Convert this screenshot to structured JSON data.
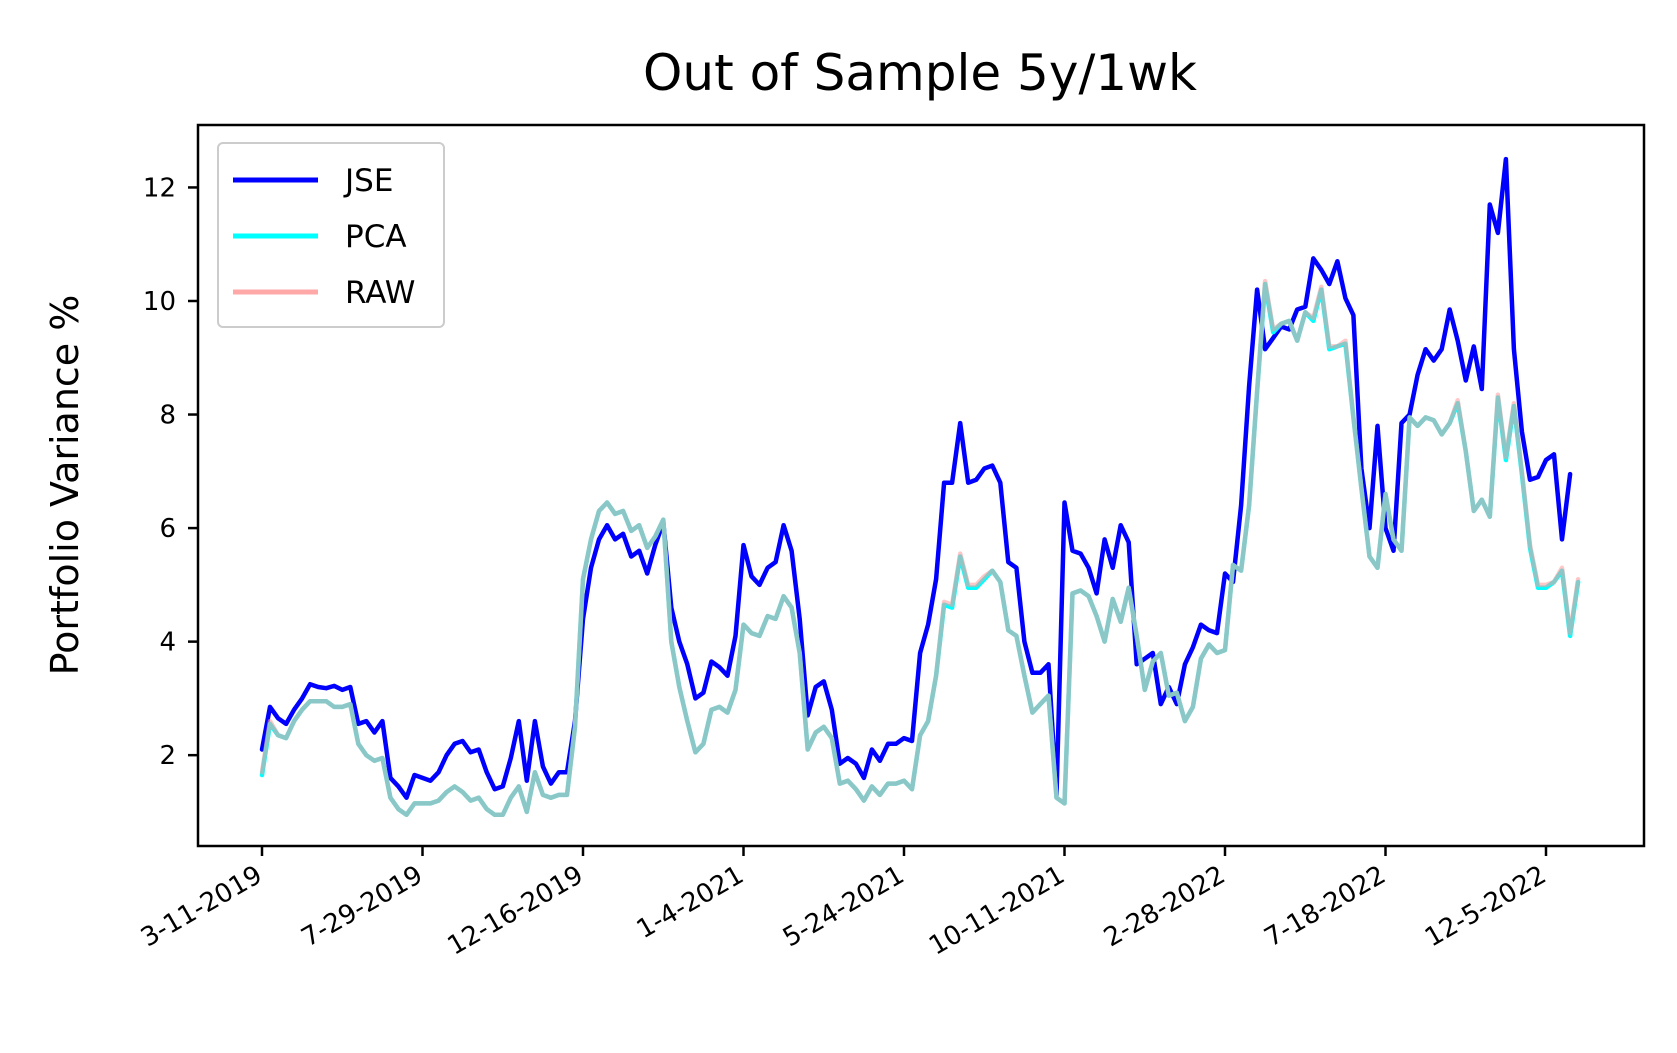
{
  "chart_data": {
    "type": "line",
    "title": "Out of Sample 5y/1wk",
    "xlabel": "",
    "ylabel": "Portfolio Variance %",
    "grid": false,
    "legend_position": "top-left",
    "yticks": [
      2,
      4,
      6,
      8,
      10,
      12
    ],
    "ylim": [
      0.4,
      13.1
    ],
    "xtick_labels": [
      "3-11-2019",
      "7-29-2019",
      "12-16-2019",
      "1-4-2021",
      "5-24-2021",
      "10-11-2021",
      "2-28-2022",
      "7-18-2022",
      "12-5-2022"
    ],
    "series": [
      {
        "name": "JSE",
        "color": "#0000ff",
        "values": [
          2.1,
          2.85,
          2.65,
          2.55,
          2.8,
          3.0,
          3.25,
          3.2,
          3.18,
          3.22,
          3.15,
          3.2,
          2.55,
          2.6,
          2.4,
          2.6,
          1.6,
          1.45,
          1.25,
          1.65,
          1.6,
          1.55,
          1.7,
          2.0,
          2.2,
          2.25,
          2.05,
          2.1,
          1.7,
          1.4,
          1.45,
          1.95,
          2.6,
          1.55,
          2.6,
          1.8,
          1.5,
          1.7,
          1.7,
          2.6,
          4.4,
          5.3,
          5.8,
          6.05,
          5.8,
          5.9,
          5.5,
          5.6,
          5.2,
          5.7,
          6.1,
          4.6,
          4.0,
          3.6,
          3.0,
          3.1,
          3.65,
          3.55,
          3.4,
          4.1,
          5.7,
          5.15,
          5.0,
          5.3,
          5.4,
          6.05,
          5.6,
          4.4,
          2.7,
          3.2,
          3.3,
          2.8,
          1.85,
          1.95,
          1.85,
          1.6,
          2.1,
          1.9,
          2.2,
          2.2,
          2.3,
          2.25,
          3.8,
          4.3,
          5.1,
          6.8,
          6.8,
          7.85,
          6.8,
          6.85,
          7.05,
          7.1,
          6.8,
          5.4,
          5.3,
          4.0,
          3.45,
          3.45,
          3.6,
          1.3,
          6.45,
          5.6,
          5.55,
          5.3,
          4.85,
          5.8,
          5.3,
          6.05,
          5.75,
          3.6,
          3.7,
          3.8,
          2.9,
          3.2,
          2.9,
          3.6,
          3.9,
          4.3,
          4.2,
          4.15,
          5.2,
          5.05,
          6.4,
          8.5,
          10.2,
          9.15,
          9.35,
          9.55,
          9.5,
          9.85,
          9.9,
          10.75,
          10.55,
          10.3,
          10.7,
          10.05,
          9.75,
          7.05,
          6.0,
          7.8,
          6.0,
          5.6,
          7.85,
          8.0,
          8.7,
          9.15,
          8.95,
          9.15,
          9.85,
          9.3,
          8.6,
          9.2,
          8.45,
          11.7,
          11.2,
          12.5,
          9.15,
          7.7,
          6.85,
          6.9,
          7.2,
          7.3,
          5.8,
          6.95
        ]
      },
      {
        "name": "PCA",
        "color": "#00ffff",
        "values": [
          1.65,
          2.55,
          2.35,
          2.3,
          2.6,
          2.8,
          2.95,
          2.95,
          2.95,
          2.85,
          2.85,
          2.9,
          2.2,
          2.0,
          1.9,
          1.95,
          1.25,
          1.05,
          0.95,
          1.15,
          1.15,
          1.15,
          1.2,
          1.35,
          1.45,
          1.35,
          1.2,
          1.25,
          1.05,
          0.95,
          0.95,
          1.25,
          1.45,
          1.0,
          1.7,
          1.3,
          1.25,
          1.3,
          1.3,
          2.5,
          5.1,
          5.8,
          6.3,
          6.45,
          6.25,
          6.3,
          5.95,
          6.05,
          5.65,
          5.85,
          6.15,
          4.0,
          3.2,
          2.6,
          2.05,
          2.2,
          2.8,
          2.85,
          2.75,
          3.15,
          4.3,
          4.15,
          4.1,
          4.45,
          4.4,
          4.8,
          4.6,
          3.8,
          2.1,
          2.4,
          2.5,
          2.3,
          1.5,
          1.55,
          1.4,
          1.2,
          1.45,
          1.3,
          1.5,
          1.5,
          1.55,
          1.4,
          2.35,
          2.6,
          3.4,
          4.65,
          4.6,
          5.5,
          4.95,
          4.95,
          5.1,
          5.25,
          5.05,
          4.2,
          4.1,
          3.4,
          2.75,
          2.9,
          3.05,
          1.25,
          1.15,
          4.85,
          4.9,
          4.8,
          4.45,
          4.0,
          4.75,
          4.35,
          4.95,
          4.1,
          3.15,
          3.65,
          3.8,
          3.05,
          3.1,
          2.6,
          2.85,
          3.7,
          3.95,
          3.8,
          3.85,
          5.35,
          5.25,
          6.4,
          8.4,
          10.3,
          9.45,
          9.6,
          9.65,
          9.3,
          9.8,
          9.65,
          10.2,
          9.15,
          9.2,
          9.25,
          7.95,
          6.7,
          5.5,
          5.3,
          6.6,
          5.8,
          5.6,
          7.95,
          7.8,
          7.95,
          7.9,
          7.65,
          7.85,
          8.2,
          7.35,
          6.3,
          6.5,
          6.2,
          8.3,
          7.2,
          8.15,
          6.95,
          5.65,
          4.95,
          4.95,
          5.05,
          5.25,
          4.1,
          5.05
        ]
      },
      {
        "name": "RAW",
        "color": "#ff9999",
        "values": [
          1.7,
          2.6,
          2.35,
          2.3,
          2.6,
          2.8,
          2.95,
          2.95,
          2.95,
          2.85,
          2.85,
          2.9,
          2.2,
          2.0,
          1.9,
          1.95,
          1.25,
          1.05,
          0.95,
          1.15,
          1.15,
          1.15,
          1.2,
          1.35,
          1.45,
          1.35,
          1.2,
          1.25,
          1.05,
          0.95,
          0.95,
          1.25,
          1.45,
          1.0,
          1.7,
          1.3,
          1.25,
          1.3,
          1.3,
          2.5,
          5.1,
          5.8,
          6.3,
          6.45,
          6.25,
          6.3,
          5.95,
          6.05,
          5.65,
          5.85,
          6.15,
          4.0,
          3.2,
          2.6,
          2.05,
          2.2,
          2.8,
          2.85,
          2.75,
          3.15,
          4.3,
          4.15,
          4.1,
          4.45,
          4.4,
          4.8,
          4.6,
          3.8,
          2.1,
          2.4,
          2.5,
          2.3,
          1.5,
          1.55,
          1.4,
          1.2,
          1.45,
          1.3,
          1.5,
          1.5,
          1.55,
          1.4,
          2.35,
          2.6,
          3.4,
          4.7,
          4.65,
          5.55,
          5.0,
          5.0,
          5.15,
          5.25,
          5.05,
          4.2,
          4.1,
          3.4,
          2.75,
          2.9,
          3.05,
          1.25,
          1.15,
          4.85,
          4.9,
          4.8,
          4.45,
          4.0,
          4.75,
          4.35,
          4.95,
          4.1,
          3.15,
          3.65,
          3.8,
          3.05,
          3.1,
          2.6,
          2.85,
          3.7,
          3.95,
          3.8,
          3.85,
          5.35,
          5.25,
          6.4,
          8.4,
          10.35,
          9.5,
          9.6,
          9.65,
          9.3,
          9.8,
          9.7,
          10.25,
          9.2,
          9.2,
          9.3,
          7.95,
          6.7,
          5.5,
          5.3,
          6.6,
          5.8,
          5.6,
          7.95,
          7.8,
          7.95,
          7.9,
          7.65,
          7.85,
          8.25,
          7.35,
          6.3,
          6.5,
          6.2,
          8.35,
          7.25,
          8.2,
          7.0,
          5.7,
          5.0,
          5.0,
          5.05,
          5.3,
          4.15,
          5.1
        ]
      }
    ]
  }
}
